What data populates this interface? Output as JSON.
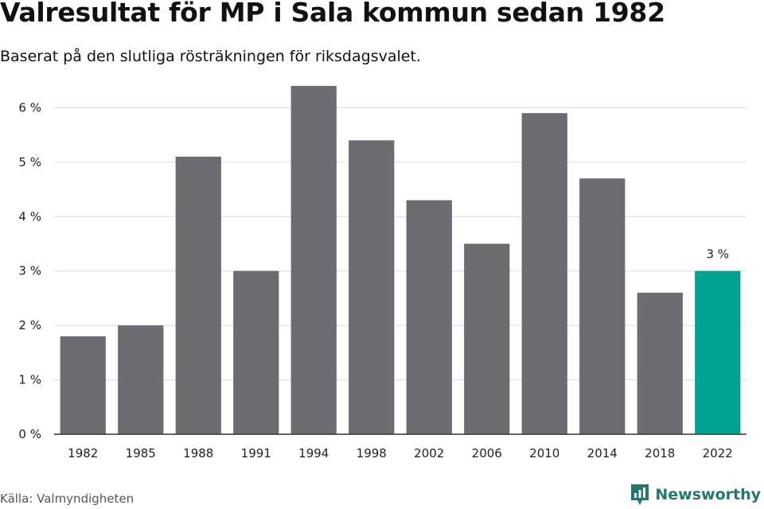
{
  "header": {
    "title": "Valresultat för MP i Sala kommun sedan 1982",
    "subtitle": "Baserat på den slutliga rösträkningen för riksdagsvalet."
  },
  "footer": {
    "source": "Källa: Valmyndigheten",
    "brand": "Newsworthy",
    "brand_icon": "newsworthy-logo-icon"
  },
  "colors": {
    "bar": "#6d6c72",
    "highlight": "#00a293",
    "grid": "#dcdcdc",
    "axis": "#333333",
    "brand": "#1f7a6e"
  },
  "chart_data": {
    "type": "bar",
    "title": "Valresultat för MP i Sala kommun sedan 1982",
    "subtitle": "Baserat på den slutliga rösträkningen för riksdagsvalet.",
    "categories": [
      "1982",
      "1985",
      "1988",
      "1991",
      "1994",
      "1998",
      "2002",
      "2006",
      "2010",
      "2014",
      "2018",
      "2022"
    ],
    "values": [
      1.8,
      2.0,
      5.1,
      3.0,
      6.4,
      5.4,
      4.3,
      3.5,
      5.9,
      4.7,
      2.6,
      3.0
    ],
    "unit": "%",
    "ylim": [
      0,
      6.4
    ],
    "yticks": [
      0,
      1,
      2,
      3,
      4,
      5,
      6
    ],
    "ytick_labels": [
      "0 %",
      "1 %",
      "2 %",
      "3 %",
      "4 %",
      "5 %",
      "6 %"
    ],
    "grid": true,
    "highlight_index": 11,
    "annotations": [
      {
        "category": "2022",
        "text": "3 %"
      }
    ],
    "xlabel": "",
    "ylabel": ""
  }
}
